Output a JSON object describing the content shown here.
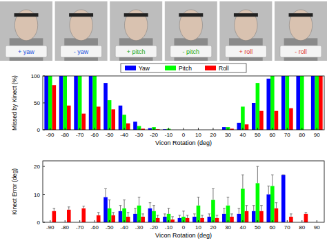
{
  "photos": [
    {
      "label": "+ yaw"
    },
    {
      "label": "- yaw"
    },
    {
      "label": "+ pitch"
    },
    {
      "label": "- pitch"
    },
    {
      "label": "+ roll"
    },
    {
      "label": "- roll"
    }
  ],
  "chart_data": [
    {
      "type": "bar",
      "y_label": "Missed by Kinect (%)",
      "x_label": "Vicon Rotation (deg)",
      "categories": [
        -90,
        -80,
        -70,
        -60,
        -50,
        -40,
        -30,
        -20,
        -10,
        0,
        10,
        20,
        30,
        40,
        50,
        60,
        70,
        80,
        90
      ],
      "series": [
        {
          "name": "Yaw",
          "color": "#0000ff",
          "values": [
            100,
            100,
            100,
            100,
            87,
            45,
            15,
            3,
            1,
            0,
            0,
            0,
            5,
            13,
            50,
            95,
            100,
            100,
            100
          ]
        },
        {
          "name": "Pitch",
          "color": "#00ff00",
          "values": [
            100,
            100,
            100,
            100,
            55,
            28,
            7,
            5,
            2,
            0,
            0,
            0,
            5,
            43,
            87,
            100,
            100,
            100,
            100
          ]
        },
        {
          "name": "Roll",
          "color": "#ff0000",
          "values": [
            83,
            45,
            30,
            43,
            38,
            12,
            2,
            1,
            0,
            0,
            0,
            0,
            2,
            10,
            35,
            35,
            40,
            0,
            100
          ]
        }
      ],
      "ylim": [
        0,
        100
      ],
      "yticks": [
        0,
        50,
        100
      ],
      "grid": false,
      "legend": "top"
    },
    {
      "type": "bar",
      "y_label": "Kinect Error (deg)",
      "x_label": "Vicon Rotation (deg)",
      "categories": [
        -90,
        -80,
        -70,
        -60,
        -50,
        -40,
        -30,
        -20,
        -10,
        0,
        10,
        20,
        30,
        40,
        50,
        60,
        70,
        80,
        90
      ],
      "series": [
        {
          "color": "#0000ff",
          "values": [
            null,
            null,
            null,
            null,
            9,
            4,
            3,
            5,
            2,
            1.5,
            2,
            2,
            3,
            3,
            4,
            10,
            17,
            null,
            null
          ],
          "errors": [
            null,
            null,
            null,
            null,
            3,
            2,
            2,
            2,
            1,
            1,
            1,
            1,
            2,
            2,
            2,
            3,
            0,
            null,
            null
          ]
        },
        {
          "color": "#00ff00",
          "values": [
            null,
            null,
            null,
            null,
            5,
            5,
            6,
            4,
            3,
            2,
            6,
            8,
            6,
            12,
            14,
            13,
            null,
            null,
            null
          ],
          "errors": [
            null,
            null,
            null,
            null,
            3,
            3,
            3,
            2,
            2,
            2,
            3,
            4,
            3,
            5,
            6,
            4,
            null,
            null,
            null
          ]
        },
        {
          "color": "#ff0000",
          "values": [
            4,
            4.5,
            5,
            2.5,
            2.5,
            2,
            2,
            1.5,
            1,
            1.5,
            1.5,
            1.5,
            2,
            4,
            4,
            5,
            2,
            3,
            null
          ],
          "errors": [
            1,
            1,
            0.8,
            1,
            1,
            1.5,
            1,
            1,
            1,
            1,
            1,
            1,
            1,
            2,
            2,
            2,
            1,
            0.5,
            null
          ]
        }
      ],
      "ylim": [
        0,
        22
      ],
      "yticks": [
        0,
        10,
        20
      ],
      "grid": false
    }
  ]
}
